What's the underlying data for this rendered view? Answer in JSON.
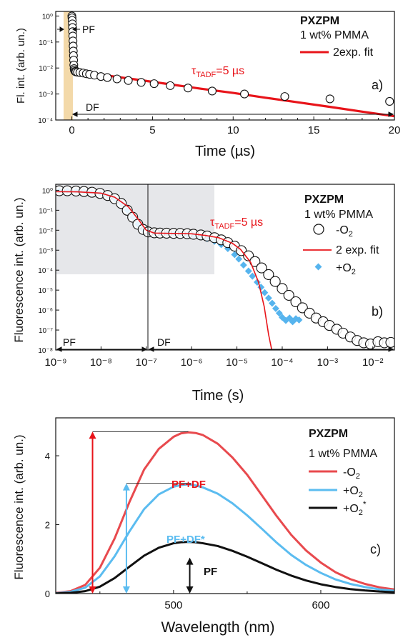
{
  "colors": {
    "red": "#e8141a",
    "red_light": "#e84a4e",
    "blue": "#5bbcf0",
    "blue_marker": "#56b4ee",
    "black": "#111111",
    "pf_band": "#f3d9a9",
    "gray_box": "#e6e7ea"
  },
  "panels": {
    "a": {
      "title": "PXZPM",
      "subtitle": "1 wt% PMMA",
      "fit_label": "2exp. fit",
      "tau_label": "τ",
      "tau_sub": "TADF",
      "tau_value": "=5 µs",
      "pf_label": "PF",
      "df_label": "DF",
      "panel_label": "a)",
      "ylabel": "Fl. int. (arb. un.)",
      "xlabel": "Time (µs)"
    },
    "b": {
      "title": "PXZPM",
      "subtitle": "1 wt% PMMA",
      "tau_label": "τ",
      "tau_sub": "TADF",
      "tau_value": "=5 µs",
      "legend_minus": "-O",
      "legend_fit": "2 exp. fit",
      "legend_plus": "+O",
      "sub2": "2",
      "pf_label": "PF",
      "df_label": "DF",
      "panel_label": "b)",
      "ylabel": "Fluorescence int. (arb. un.)",
      "xlabel": "Time (s)"
    },
    "c": {
      "title": "PXZPM",
      "subtitle": "1 wt% PMMA",
      "legend_minus": "-O",
      "legend_plus": "+O",
      "legend_plus_star": "+O",
      "sub2": "2",
      "star": "*",
      "label_pfdf": "PF+DF",
      "label_pfdf_star": "PF+DF*",
      "label_pf": "PF",
      "panel_label": "c)",
      "ylabel": "Fluorescence int. (arb. un.)",
      "xlabel": "Wavelength (nm)"
    }
  },
  "chart_data": [
    {
      "type": "scatter",
      "panel": "a",
      "title": "",
      "xlabel": "Time (µs)",
      "ylabel": "Fl. int. (arb. un.)",
      "xlim": [
        -1,
        20
      ],
      "ylim": [
        0.0001,
        1.5
      ],
      "yscale": "log",
      "xticks": [
        0,
        5,
        10,
        15,
        20
      ],
      "xtick_labels": [
        "0",
        "5",
        "10",
        "15",
        "20"
      ],
      "yticks": [
        0.0001,
        0.001,
        0.01,
        0.1,
        1
      ],
      "ytick_labels": [
        "10⁻⁴",
        "10⁻³",
        "10⁻²",
        "10⁻¹",
        "10⁰"
      ],
      "series": [
        {
          "name": "",
          "marker": "open-circle",
          "x": [
            0.0,
            0.01,
            0.02,
            0.03,
            0.04,
            0.05,
            0.06,
            0.07,
            0.08,
            0.09,
            0.1,
            0.11,
            0.12,
            0.14,
            0.16,
            0.2,
            0.25,
            0.35,
            0.5,
            0.7,
            0.9,
            1.1,
            1.4,
            1.8,
            2.2,
            2.8,
            3.5,
            4.3,
            5.1,
            6.1,
            7.2,
            8.7,
            10.7,
            13.2,
            16.0,
            19.7
          ],
          "y": [
            1.0,
            0.85,
            0.68,
            0.5,
            0.36,
            0.25,
            0.17,
            0.11,
            0.07,
            0.045,
            0.03,
            0.02,
            0.013,
            0.0095,
            0.0082,
            0.0074,
            0.0071,
            0.0069,
            0.0067,
            0.0064,
            0.006,
            0.0057,
            0.0053,
            0.0047,
            0.0043,
            0.0038,
            0.0033,
            0.0028,
            0.0025,
            0.0021,
            0.0017,
            0.0013,
            0.001,
            0.0008,
            0.00065,
            0.00052
          ]
        },
        {
          "name": "2exp. fit",
          "line": true,
          "x": [
            0.0,
            0.05,
            0.1,
            0.15,
            0.2,
            0.3,
            0.5,
            1,
            2,
            4,
            6,
            8,
            10,
            12,
            14,
            16,
            18,
            20
          ],
          "y": [
            1.0,
            0.2,
            0.04,
            0.011,
            0.0078,
            0.0072,
            0.0069,
            0.0064,
            0.0053,
            0.0036,
            0.0024,
            0.0016,
            0.0011,
            0.00072,
            0.00048,
            0.00032,
            0.00021,
            0.00014
          ]
        }
      ],
      "annotations": [
        "PF",
        "DF",
        "τTADF=5 µs",
        "a)"
      ]
    },
    {
      "type": "scatter",
      "panel": "b",
      "title": "",
      "xlabel": "Time (s)",
      "ylabel": "Fluorescence int. (arb. un.)",
      "xscale": "log",
      "yscale": "log",
      "xlim": [
        1e-09,
        0.03
      ],
      "ylim": [
        1e-08,
        2
      ],
      "xticks": [
        1e-09,
        1e-08,
        1e-07,
        1e-06,
        1e-05,
        0.0001,
        0.001,
        0.01
      ],
      "xtick_labels": [
        "10⁻⁹",
        "10⁻⁸",
        "10⁻⁷",
        "10⁻⁶",
        "10⁻⁵",
        "10⁻⁴",
        "10⁻³",
        "10⁻²"
      ],
      "yticks": [
        1e-08,
        1e-07,
        1e-06,
        1e-05,
        0.0001,
        0.001,
        0.01,
        0.1,
        1
      ],
      "ytick_labels": [
        "10⁻⁸",
        "10⁻⁷",
        "10⁻⁶",
        "10⁻⁵",
        "10⁻⁴",
        "10⁻³",
        "10⁻²",
        "10⁻¹",
        "10⁰"
      ],
      "series": [
        {
          "name": "-O2",
          "marker": "open-circle",
          "x": [
            1.2e-09,
            1.8e-09,
            2.8e-09,
            4.2e-09,
            6.3e-09,
            9.5e-09,
            1.4e-08,
            2e-08,
            2.8e-08,
            3.8e-08,
            5e-08,
            6.5e-08,
            8.5e-08,
            1.1e-07,
            1.5e-07,
            2e-07,
            2.8e-07,
            4e-07,
            5.6e-07,
            8e-07,
            1.1e-06,
            1.6e-06,
            2.2e-06,
            3.2e-06,
            4.5e-06,
            6.3e-06,
            8.9e-06,
            1.25e-05,
            1.8e-05,
            2.5e-05,
            3.5e-05,
            5e-05,
            7e-05,
            0.0001,
            0.00014,
            0.0002,
            0.00028,
            0.0004,
            0.00056,
            0.0008,
            0.0011,
            0.0016,
            0.0022,
            0.0032,
            0.0045,
            0.0063,
            0.0089,
            0.013,
            0.018,
            0.025
          ],
          "y": [
            0.95,
            0.95,
            0.92,
            0.87,
            0.8,
            0.7,
            0.55,
            0.38,
            0.22,
            0.1,
            0.045,
            0.02,
            0.011,
            0.0082,
            0.0074,
            0.0072,
            0.0071,
            0.007,
            0.0069,
            0.0067,
            0.0063,
            0.0058,
            0.0051,
            0.0042,
            0.0033,
            0.0024,
            0.0016,
            0.00095,
            0.00052,
            0.00027,
            0.00013,
            6e-05,
            2.7e-05,
            1.2e-05,
            5.5e-06,
            2.6e-06,
            1.3e-06,
            7e-07,
            4e-07,
            2.6e-07,
            1.7e-07,
            1.1e-07,
            7e-08,
            4.5e-08,
            3e-08,
            2.3e-08,
            2e-08,
            2.6e-08,
            2.3e-08,
            2.4e-08
          ]
        },
        {
          "name": "2 exp. fit",
          "line": true,
          "x": [
            1e-09,
            3e-09,
            1e-08,
            2e-08,
            4e-08,
            7e-08,
            1e-07,
            1.5e-07,
            3e-07,
            1e-06,
            2e-06,
            4e-06,
            8e-06,
            1.2e-05,
            2e-05,
            3e-05,
            4e-05,
            5e-05,
            6e-05,
            6.5e-05
          ],
          "y": [
            0.85,
            0.84,
            0.72,
            0.45,
            0.15,
            0.03,
            0.01,
            0.0072,
            0.007,
            0.0066,
            0.0055,
            0.0042,
            0.0022,
            0.0011,
            0.00025,
            2.5e-05,
            1.5e-06,
            6e-08,
            8e-09,
            8e-09
          ]
        },
        {
          "name": "+O2",
          "marker": "filled-diamond",
          "x": [
            1.2e-09,
            1.8e-09,
            2.8e-09,
            4.2e-09,
            6.3e-09,
            9.5e-09,
            1.4e-08,
            2e-08,
            2.8e-08,
            3.8e-08,
            5e-08,
            6.5e-08,
            8.5e-08,
            1.1e-07,
            1.5e-07,
            2e-07,
            2.8e-07,
            4e-07,
            5.6e-07,
            8e-07,
            1.1e-06,
            1.6e-06,
            2.2e-06,
            3.2e-06,
            4.5e-06,
            6.3e-06,
            8.9e-06,
            1.1e-05,
            1.4e-05,
            1.8e-05,
            2.2e-05,
            2.8e-05,
            3.4e-05,
            4.1e-05,
            5e-05,
            6e-05,
            7.2e-05,
            8.6e-05,
            0.0001,
            0.00012,
            0.000145,
            0.00017,
            0.0002,
            0.000235
          ],
          "y": [
            0.95,
            0.95,
            0.92,
            0.87,
            0.8,
            0.7,
            0.55,
            0.38,
            0.22,
            0.1,
            0.045,
            0.02,
            0.011,
            0.0082,
            0.0074,
            0.0072,
            0.007,
            0.0068,
            0.0064,
            0.006,
            0.0054,
            0.0046,
            0.0038,
            0.0028,
            0.0019,
            0.0012,
            0.0006,
            0.00036,
            0.00018,
            9e-05,
            5e-05,
            2.5e-05,
            1.4e-05,
            7.5e-06,
            4e-06,
            2.2e-06,
            1.2e-06,
            7e-07,
            4.3e-07,
            3e-07,
            4e-07,
            2.6e-07,
            3.7e-07,
            3.2e-07
          ]
        }
      ],
      "annotations": [
        "PF",
        "DF",
        "τTADF=5 µs",
        "b)"
      ]
    },
    {
      "type": "line",
      "panel": "c",
      "title": "",
      "xlabel": "Wavelength (nm)",
      "ylabel": "Fluorescence int. (arb. un.)",
      "xlim": [
        420,
        650
      ],
      "ylim": [
        0,
        5.1
      ],
      "xticks": [
        500,
        600
      ],
      "xtick_labels": [
        "500",
        "600"
      ],
      "yticks": [
        0,
        2,
        4
      ],
      "ytick_labels": [
        "0",
        "2",
        "4"
      ],
      "series": [
        {
          "name": "-O2",
          "peak": 4.7,
          "x": [
            420,
            430,
            440,
            450,
            460,
            470,
            480,
            490,
            500,
            505,
            510,
            515,
            520,
            530,
            540,
            550,
            560,
            570,
            580,
            590,
            600,
            610,
            620,
            630,
            640,
            650
          ],
          "y": [
            0.02,
            0.07,
            0.25,
            0.75,
            1.6,
            2.65,
            3.6,
            4.2,
            4.55,
            4.65,
            4.68,
            4.66,
            4.6,
            4.35,
            3.95,
            3.45,
            2.85,
            2.25,
            1.7,
            1.25,
            0.9,
            0.62,
            0.42,
            0.28,
            0.18,
            0.12
          ]
        },
        {
          "name": "+O2",
          "peak": 3.2,
          "x": [
            420,
            430,
            440,
            450,
            460,
            470,
            480,
            490,
            500,
            505,
            510,
            515,
            520,
            530,
            540,
            550,
            560,
            570,
            580,
            590,
            600,
            610,
            620,
            630,
            640,
            650
          ],
          "y": [
            0.01,
            0.05,
            0.17,
            0.5,
            1.08,
            1.8,
            2.45,
            2.88,
            3.1,
            3.15,
            3.17,
            3.14,
            3.08,
            2.9,
            2.62,
            2.27,
            1.88,
            1.48,
            1.12,
            0.83,
            0.6,
            0.41,
            0.28,
            0.19,
            0.12,
            0.08
          ]
        },
        {
          "name": "+O2*",
          "peak": 1.5,
          "x": [
            420,
            430,
            440,
            450,
            460,
            470,
            480,
            490,
            500,
            505,
            510,
            515,
            520,
            530,
            540,
            550,
            560,
            570,
            580,
            590,
            600,
            610,
            620,
            630,
            640,
            650
          ],
          "y": [
            0.005,
            0.02,
            0.07,
            0.2,
            0.45,
            0.78,
            1.1,
            1.33,
            1.46,
            1.49,
            1.5,
            1.49,
            1.46,
            1.38,
            1.24,
            1.07,
            0.88,
            0.69,
            0.52,
            0.38,
            0.27,
            0.19,
            0.13,
            0.09,
            0.06,
            0.04
          ]
        }
      ],
      "annotations": [
        "PF+DF",
        "PF+DF*",
        "PF",
        "c)"
      ]
    }
  ]
}
